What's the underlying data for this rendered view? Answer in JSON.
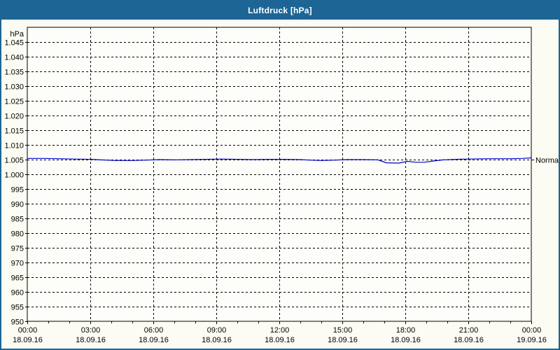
{
  "window": {
    "title": "Luftdruck [hPa]",
    "colors": {
      "titlebar": "#1d6594",
      "border": "#1d6594",
      "content_bg": "#fcfcf4",
      "plot_bg": "#fdfdf9",
      "grid": "#000000",
      "axis": "#000000",
      "series": "#0000cc",
      "title_text": "#ffffff"
    }
  },
  "chart_data": {
    "type": "line",
    "title": "Luftdruck [hPa]",
    "y_axis_label": "hPa",
    "ylim": [
      950,
      1050
    ],
    "xlim_hours": [
      0,
      24
    ],
    "x_minor_step_hours": 1,
    "grid": "dashed",
    "legend_position": "none",
    "y_ticks": [
      {
        "value": 1045,
        "label": "1.045"
      },
      {
        "value": 1040,
        "label": "1.040"
      },
      {
        "value": 1035,
        "label": "1.035"
      },
      {
        "value": 1030,
        "label": "1.030"
      },
      {
        "value": 1025,
        "label": "1.025"
      },
      {
        "value": 1020,
        "label": "1.020"
      },
      {
        "value": 1015,
        "label": "1.015"
      },
      {
        "value": 1010,
        "label": "1.010"
      },
      {
        "value": 1005,
        "label": "1.005"
      },
      {
        "value": 1000,
        "label": "1.000"
      },
      {
        "value": 995,
        "label": "995"
      },
      {
        "value": 990,
        "label": "990"
      },
      {
        "value": 985,
        "label": "985"
      },
      {
        "value": 980,
        "label": "980"
      },
      {
        "value": 975,
        "label": "975"
      },
      {
        "value": 970,
        "label": "970"
      },
      {
        "value": 965,
        "label": "965"
      },
      {
        "value": 960,
        "label": "960"
      },
      {
        "value": 955,
        "label": "955"
      },
      {
        "value": 950,
        "label": "950"
      }
    ],
    "x_ticks": [
      {
        "hour": 0,
        "time": "00:00",
        "date": "18.09.16"
      },
      {
        "hour": 3,
        "time": "03:00",
        "date": "18.09.16"
      },
      {
        "hour": 6,
        "time": "06:00",
        "date": "18.09.16"
      },
      {
        "hour": 9,
        "time": "09:00",
        "date": "18.09.16"
      },
      {
        "hour": 12,
        "time": "12:00",
        "date": "18.09.16"
      },
      {
        "hour": 15,
        "time": "15:00",
        "date": "18.09.16"
      },
      {
        "hour": 18,
        "time": "18:00",
        "date": "18.09.16"
      },
      {
        "hour": 21,
        "time": "21:00",
        "date": "18.09.16"
      },
      {
        "hour": 24,
        "time": "00:00",
        "date": "19.09.16"
      }
    ],
    "annotation": {
      "label": "Normal",
      "value": 1005
    },
    "series": [
      {
        "name": "Luftdruck",
        "color": "#0000cc",
        "points": [
          [
            0,
            1005.4
          ],
          [
            0.7,
            1005.4
          ],
          [
            1.5,
            1005.3
          ],
          [
            2.2,
            1005.2
          ],
          [
            3,
            1005.1
          ],
          [
            3.5,
            1004.9
          ],
          [
            4.2,
            1004.7
          ],
          [
            5,
            1004.7
          ],
          [
            5.6,
            1004.8
          ],
          [
            6.3,
            1005.0
          ],
          [
            7,
            1004.9
          ],
          [
            7.8,
            1005.0
          ],
          [
            8.5,
            1005.1
          ],
          [
            9.2,
            1005.2
          ],
          [
            10,
            1005.1
          ],
          [
            10.8,
            1005.0
          ],
          [
            11.5,
            1005.1
          ],
          [
            12.2,
            1005.1
          ],
          [
            13,
            1005.0
          ],
          [
            13.5,
            1004.8
          ],
          [
            14,
            1004.7
          ],
          [
            14.6,
            1004.8
          ],
          [
            15.2,
            1005.0
          ],
          [
            16,
            1005.0
          ],
          [
            16.7,
            1004.9
          ],
          [
            17.1,
            1003.9
          ],
          [
            17.7,
            1003.8
          ],
          [
            18.1,
            1004.4
          ],
          [
            18.5,
            1004.1
          ],
          [
            18.9,
            1004.1
          ],
          [
            19.3,
            1004.5
          ],
          [
            19.8,
            1004.9
          ],
          [
            20.4,
            1005.1
          ],
          [
            21,
            1005.2
          ],
          [
            22,
            1005.3
          ],
          [
            23,
            1005.3
          ],
          [
            23.6,
            1005.4
          ],
          [
            24,
            1005.6
          ]
        ]
      }
    ]
  }
}
